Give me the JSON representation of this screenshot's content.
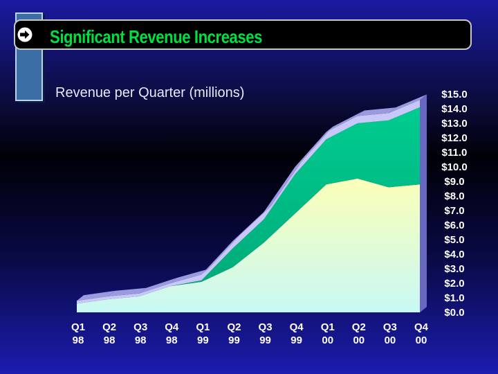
{
  "slide": {
    "title": "Significant Revenue Increases",
    "subtitle": "Revenue per Quarter (millions)"
  },
  "icons": {
    "title_icon": "arrow-right-icon"
  },
  "colors": {
    "title_text": "#00e040",
    "base_area": "#fbffc0",
    "middle_area": "#00c890",
    "top_area": "#c8c8f8"
  },
  "chart_data": {
    "type": "area",
    "stacked": true,
    "categories": [
      [
        "Q1",
        "98"
      ],
      [
        "Q2",
        "98"
      ],
      [
        "Q3",
        "98"
      ],
      [
        "Q4",
        "98"
      ],
      [
        "Q1",
        "99"
      ],
      [
        "Q2",
        "99"
      ],
      [
        "Q3",
        "99"
      ],
      [
        "Q4",
        "99"
      ],
      [
        "Q1",
        "00"
      ],
      [
        "Q2",
        "00"
      ],
      [
        "Q3",
        "00"
      ],
      [
        "Q4",
        "00"
      ]
    ],
    "series": [
      {
        "values": [
          0.6,
          0.9,
          1.1,
          1.8,
          2.1,
          3.1,
          4.8,
          6.8,
          8.8,
          9.2,
          8.6,
          8.8
        ]
      },
      {
        "values": [
          0.0,
          0.0,
          0.0,
          0.0,
          0.1,
          1.3,
          1.6,
          2.7,
          3.1,
          3.8,
          4.6,
          5.3
        ]
      },
      {
        "values": [
          0.2,
          0.2,
          0.2,
          0.2,
          0.4,
          0.5,
          0.5,
          0.5,
          0.5,
          0.5,
          0.5,
          0.5
        ]
      }
    ],
    "ylim": [
      0,
      15
    ],
    "ytick_labels": [
      "$0.0",
      "$1.0",
      "$2.0",
      "$3.0",
      "$4.0",
      "$5.0",
      "$6.0",
      "$7.0",
      "$8.0",
      "$9.0",
      "$10.0",
      "$11.0",
      "$12.0",
      "$13.0",
      "$14.0",
      "$15.0"
    ],
    "y_axis_position": "right",
    "grid": false,
    "legend": "none"
  }
}
